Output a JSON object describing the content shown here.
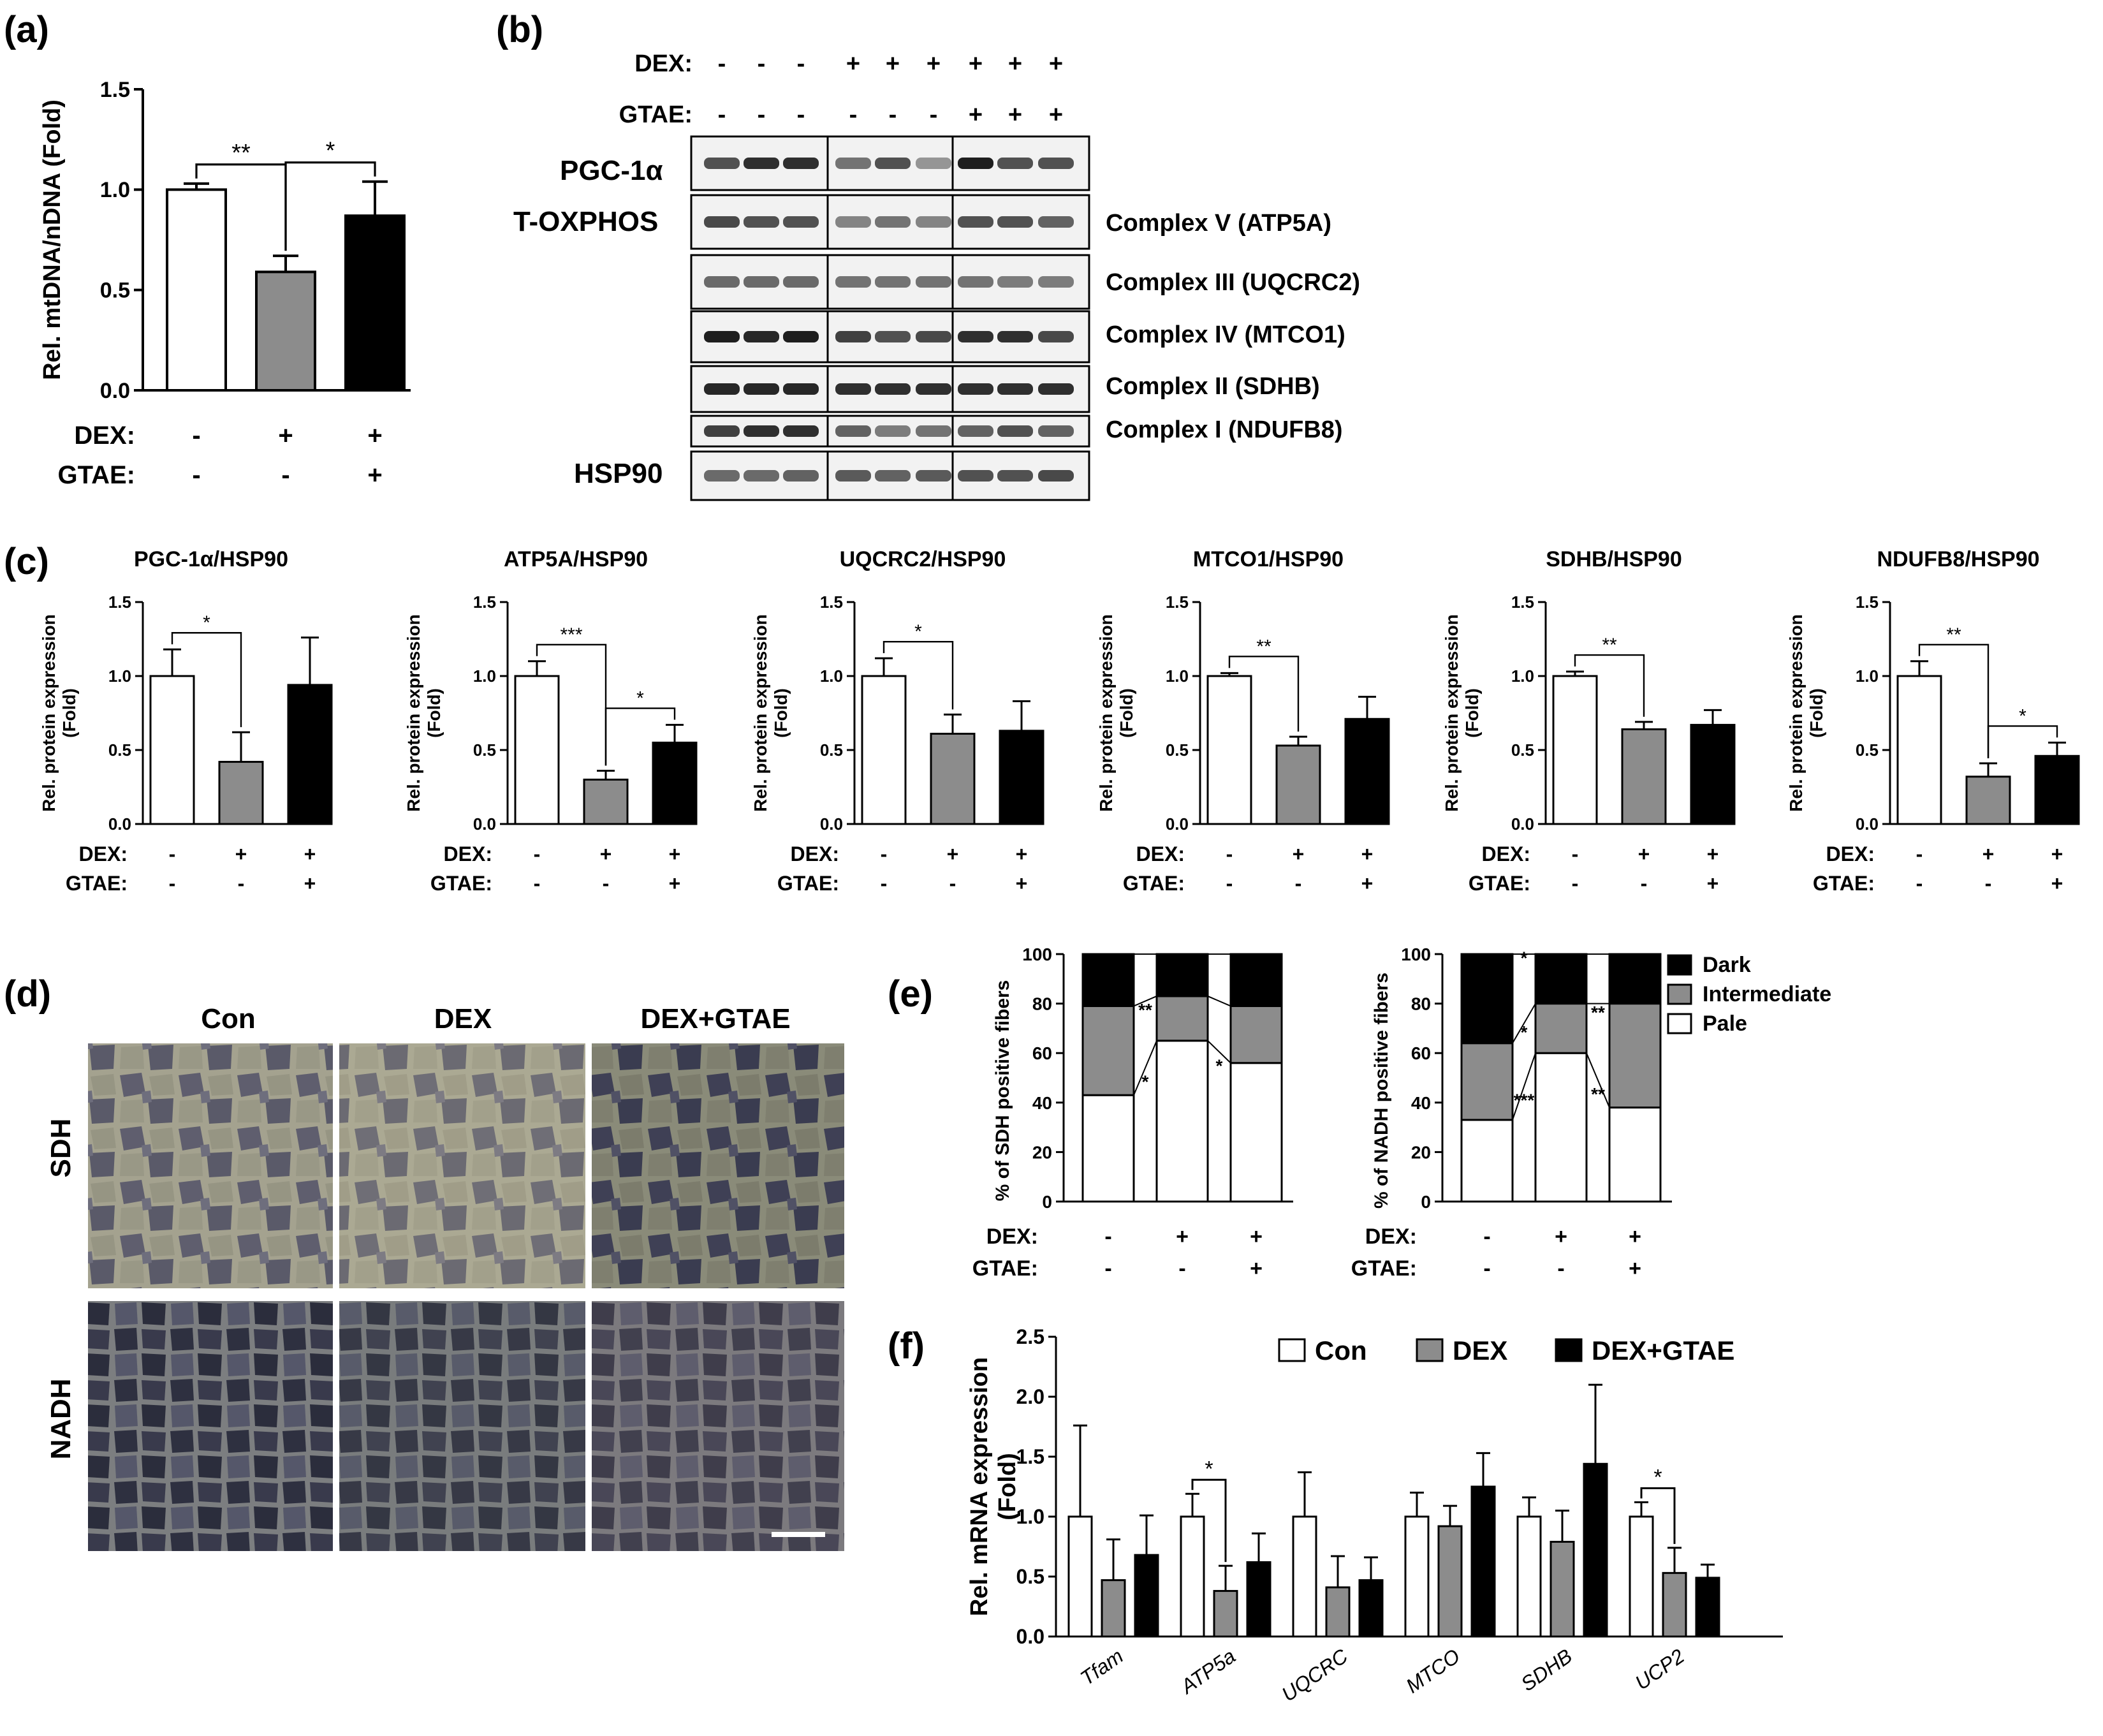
{
  "panels": {
    "a": "(a)",
    "b": "(b)",
    "c": "(c)",
    "d": "(d)",
    "e": "(e)",
    "f": "(f)"
  },
  "colors": {
    "con": "#ffffff",
    "dex": "#8c8c8c",
    "gtae": "#000000",
    "pale": "#ffffff",
    "intermediate": "#8c8c8c",
    "dark": "#000000"
  },
  "treatment": {
    "dex_label": "DEX:",
    "gtae_label": "GTAE:",
    "dex": [
      "-",
      "+",
      "+"
    ],
    "gtae": [
      "-",
      "-",
      "+"
    ]
  },
  "blot": {
    "dex_label": "DEX:",
    "gtae_label": "GTAE:",
    "dex": [
      "-",
      "-",
      "-",
      "+",
      "+",
      "+",
      "+",
      "+",
      "+"
    ],
    "gtae": [
      "-",
      "-",
      "-",
      "-",
      "-",
      "-",
      "+",
      "+",
      "+"
    ],
    "left_labels": [
      "PGC-1α",
      "T-OXPHOS",
      "HSP90"
    ],
    "right_labels": [
      "Complex V (ATP5A)",
      "Complex III (UQCRC2)",
      "Complex IV (MTCO1)",
      "Complex II (SDHB)",
      "Complex I (NDUFB8)"
    ]
  },
  "histology": {
    "columns": [
      "Con",
      "DEX",
      "DEX+GTAE"
    ],
    "rows": [
      "SDH",
      "NADH"
    ]
  },
  "chart_data": [
    {
      "id": "a",
      "type": "bar",
      "categories": [
        "Con",
        "DEX",
        "DEX+GTAE"
      ],
      "values": [
        1.0,
        0.59,
        0.87
      ],
      "errors": [
        0.03,
        0.08,
        0.17
      ],
      "ylabel": "Rel. mtDNA/nDNA (Fold)",
      "ylim": [
        0,
        1.5
      ],
      "yticks": [
        "0.0",
        "0.5",
        "1.0",
        "1.5"
      ],
      "significance": [
        {
          "from": 0,
          "to": 1,
          "label": "**"
        },
        {
          "from": 1,
          "to": 2,
          "label": "*"
        }
      ]
    },
    {
      "id": "c1",
      "type": "bar",
      "title": "PGC-1α/HSP90",
      "values": [
        1.0,
        0.42,
        0.94
      ],
      "errors": [
        0.18,
        0.2,
        0.32
      ],
      "ylabel": [
        "Rel. protein expression",
        "(Fold)"
      ],
      "ylim": [
        0,
        1.5
      ],
      "yticks": [
        "0.0",
        "0.5",
        "1.0",
        "1.5"
      ],
      "significance": [
        {
          "from": 0,
          "to": 1,
          "label": "*"
        }
      ]
    },
    {
      "id": "c2",
      "type": "bar",
      "title": "ATP5A/HSP90",
      "values": [
        1.0,
        0.3,
        0.55
      ],
      "errors": [
        0.1,
        0.06,
        0.12
      ],
      "ylabel": [
        "Rel. protein expression",
        "(Fold)"
      ],
      "ylim": [
        0,
        1.5
      ],
      "yticks": [
        "0.0",
        "0.5",
        "1.0",
        "1.5"
      ],
      "significance": [
        {
          "from": 0,
          "to": 1,
          "label": "***"
        },
        {
          "from": 1,
          "to": 2,
          "label": "*"
        }
      ]
    },
    {
      "id": "c3",
      "type": "bar",
      "title": "UQCRC2/HSP90",
      "values": [
        1.0,
        0.61,
        0.63
      ],
      "errors": [
        0.12,
        0.13,
        0.2
      ],
      "ylabel": [
        "Rel. protein expression",
        "(Fold)"
      ],
      "ylim": [
        0,
        1.5
      ],
      "yticks": [
        "0.0",
        "0.5",
        "1.0",
        "1.5"
      ],
      "significance": [
        {
          "from": 0,
          "to": 1,
          "label": "*"
        }
      ]
    },
    {
      "id": "c4",
      "type": "bar",
      "title": "MTCO1/HSP90",
      "values": [
        1.0,
        0.53,
        0.71
      ],
      "errors": [
        0.02,
        0.06,
        0.15
      ],
      "ylabel": [
        "Rel. protein expression",
        "(Fold)"
      ],
      "ylim": [
        0,
        1.5
      ],
      "yticks": [
        "0.0",
        "0.5",
        "1.0",
        "1.5"
      ],
      "significance": [
        {
          "from": 0,
          "to": 1,
          "label": "**"
        }
      ]
    },
    {
      "id": "c5",
      "type": "bar",
      "title": "SDHB/HSP90",
      "values": [
        1.0,
        0.64,
        0.67
      ],
      "errors": [
        0.03,
        0.05,
        0.1
      ],
      "ylabel": [
        "Rel. protein expression",
        "(Fold)"
      ],
      "ylim": [
        0,
        1.5
      ],
      "yticks": [
        "0.0",
        "0.5",
        "1.0",
        "1.5"
      ],
      "significance": [
        {
          "from": 0,
          "to": 1,
          "label": "**"
        }
      ]
    },
    {
      "id": "c6",
      "type": "bar",
      "title": "NDUFB8/HSP90",
      "values": [
        1.0,
        0.32,
        0.46
      ],
      "errors": [
        0.1,
        0.09,
        0.09
      ],
      "ylabel": [
        "Rel. protein expression",
        "(Fold)"
      ],
      "ylim": [
        0,
        1.5
      ],
      "yticks": [
        "0.0",
        "0.5",
        "1.0",
        "1.5"
      ],
      "significance": [
        {
          "from": 0,
          "to": 1,
          "label": "**"
        },
        {
          "from": 1,
          "to": 2,
          "label": "*"
        }
      ]
    },
    {
      "id": "e1",
      "type": "bar",
      "stacked": true,
      "ylabel": "% of SDH positive fibers",
      "ylim": [
        0,
        100
      ],
      "yticks": [
        "0",
        "20",
        "40",
        "60",
        "80",
        "100"
      ],
      "series": [
        {
          "name": "Pale",
          "values": [
            43,
            65,
            56
          ],
          "errors": [
            4,
            1,
            3
          ]
        },
        {
          "name": "Intermediate",
          "values": [
            36,
            18,
            23
          ]
        },
        {
          "name": "Dark",
          "values": [
            21,
            17,
            21
          ]
        }
      ],
      "significance": [
        {
          "label": "**",
          "level": "upper",
          "gap": 0
        },
        {
          "label": "*",
          "level": "lower",
          "gap": 0
        },
        {
          "label": "*",
          "level": "lower",
          "gap": 1
        }
      ]
    },
    {
      "id": "e2",
      "type": "bar",
      "stacked": true,
      "ylabel": "% of NADH positive fibers",
      "ylim": [
        0,
        100
      ],
      "yticks": [
        "0",
        "20",
        "40",
        "60",
        "80",
        "100"
      ],
      "series": [
        {
          "name": "Pale",
          "values": [
            33,
            60,
            38
          ],
          "errors": [
            2,
            1,
            1
          ]
        },
        {
          "name": "Intermediate",
          "values": [
            31,
            20,
            42
          ]
        },
        {
          "name": "Dark",
          "values": [
            36,
            20,
            20
          ]
        }
      ],
      "legend": [
        "Dark",
        "Intermediate",
        "Pale"
      ],
      "significance": [
        {
          "label": "*",
          "level": "top",
          "gap": 0
        },
        {
          "label": "*",
          "level": "upper",
          "gap": 0
        },
        {
          "label": "***",
          "level": "lower",
          "gap": 0
        },
        {
          "label": "**",
          "level": "upper",
          "gap": 1
        },
        {
          "label": "**",
          "level": "lower",
          "gap": 1
        }
      ]
    },
    {
      "id": "f",
      "type": "bar",
      "categories": [
        "Tfam",
        "ATP5a",
        "UQCRC",
        "MTCO",
        "SDHB",
        "UCP2"
      ],
      "series": [
        {
          "name": "Con",
          "values": [
            1.0,
            1.0,
            1.0,
            1.0,
            1.0,
            1.0
          ],
          "errors": [
            0.76,
            0.19,
            0.37,
            0.2,
            0.16,
            0.12
          ]
        },
        {
          "name": "DEX",
          "values": [
            0.47,
            0.38,
            0.41,
            0.92,
            0.79,
            0.53
          ],
          "errors": [
            0.34,
            0.21,
            0.26,
            0.17,
            0.26,
            0.21
          ]
        },
        {
          "name": "DEX+GTAE",
          "values": [
            0.68,
            0.62,
            0.47,
            1.25,
            1.44,
            0.49
          ],
          "errors": [
            0.33,
            0.24,
            0.19,
            0.28,
            0.66,
            0.11
          ]
        }
      ],
      "ylabel": [
        "Rel. mRNA expression",
        "(Fold)"
      ],
      "ylim": [
        0,
        2.5
      ],
      "yticks": [
        "0.0",
        "0.5",
        "1.0",
        "1.5",
        "2.0",
        "2.5"
      ],
      "significance": [
        {
          "category": 1,
          "label": "*"
        },
        {
          "category": 5,
          "label": "*"
        }
      ]
    }
  ]
}
